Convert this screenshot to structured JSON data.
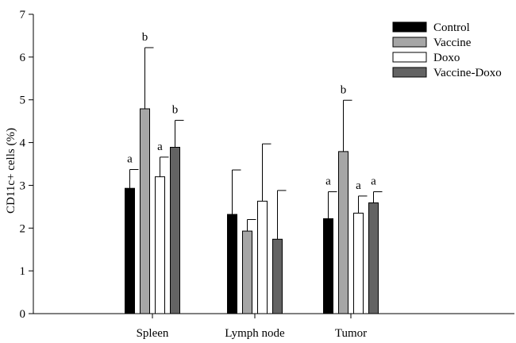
{
  "chart_data": {
    "type": "bar",
    "title": "",
    "xlabel": "",
    "ylabel": "CD11c+ cells (%)",
    "ylim": [
      0,
      7
    ],
    "yticks": [
      0,
      1,
      2,
      3,
      4,
      5,
      6,
      7
    ],
    "categories": [
      "Spleen",
      "Lymph node",
      "Tumor"
    ],
    "legend_position": "top-right",
    "grid": false,
    "series": [
      {
        "name": "Control",
        "color": "#000000",
        "values": [
          2.93,
          2.32,
          2.22
        ],
        "error": [
          0.44,
          1.04,
          0.63
        ],
        "labels": [
          "a",
          "",
          "a"
        ]
      },
      {
        "name": "Vaccine",
        "color": "#a6a6a6",
        "values": [
          4.79,
          1.93,
          3.79
        ],
        "error": [
          1.43,
          0.27,
          1.2
        ],
        "labels": [
          "b",
          "",
          "b"
        ]
      },
      {
        "name": "Doxo",
        "color": "#ffffff",
        "values": [
          3.2,
          2.63,
          2.35
        ],
        "error": [
          0.46,
          1.34,
          0.4
        ],
        "labels": [
          "a",
          "",
          "a"
        ]
      },
      {
        "name": "Vaccine-Doxo",
        "color": "#636363",
        "values": [
          3.89,
          1.74,
          2.59
        ],
        "error": [
          0.63,
          1.14,
          0.26
        ],
        "labels": [
          "b",
          "",
          "a"
        ]
      }
    ]
  }
}
